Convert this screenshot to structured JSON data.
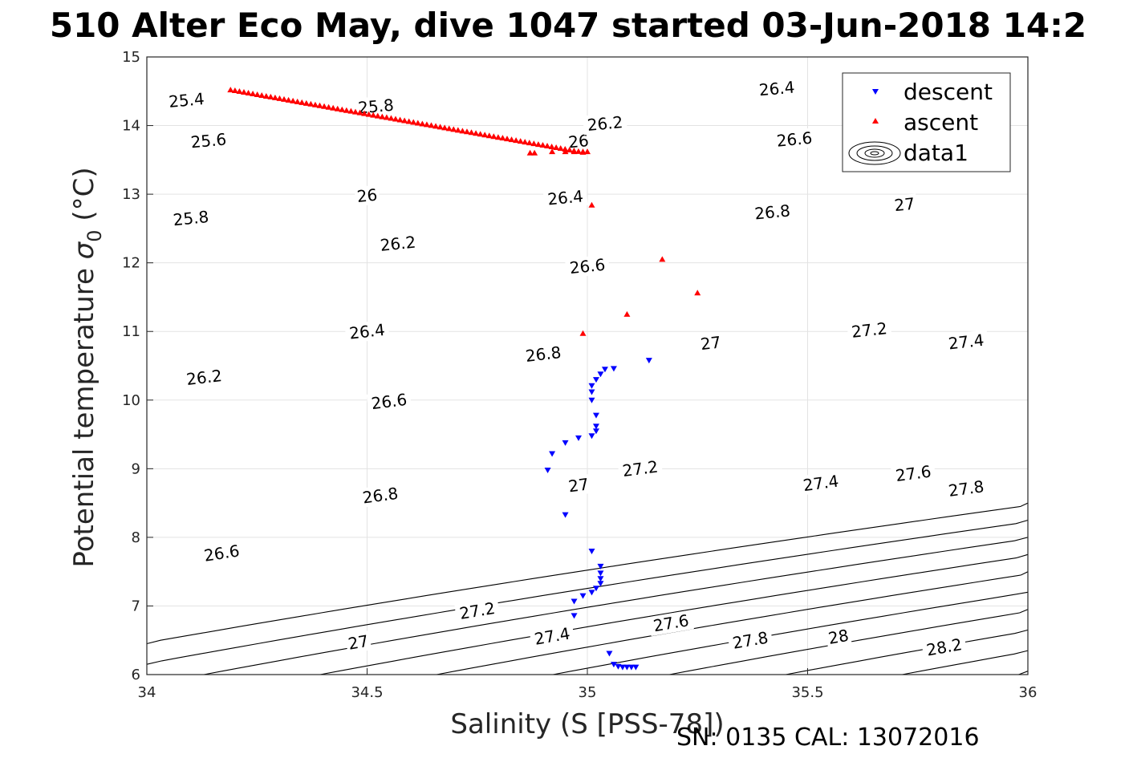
{
  "chart_data": {
    "type": "scatter",
    "title": "510 Alter Eco May, dive 1047 started 03-Jun-2018 14:2",
    "xlabel": "Salinity (S [PSS-78])",
    "ylabel_main": "Potential temperature ",
    "ylabel_symbol": "σ",
    "ylabel_sub": "0",
    "ylabel_unit": " (°C)",
    "xlim": [
      34,
      36
    ],
    "ylim": [
      6,
      15
    ],
    "x_ticks": [
      "34",
      "34.5",
      "35",
      "35.5",
      "36"
    ],
    "y_ticks": [
      "6",
      "7",
      "8",
      "9",
      "10",
      "11",
      "12",
      "13",
      "14",
      "15"
    ],
    "grid": true,
    "legend_position": "top-right",
    "legend": [
      "descent",
      "ascent",
      "data1"
    ],
    "series": [
      {
        "name": "descent",
        "color": "#0000ff",
        "marker": "triangle-down",
        "points": [
          [
            35.14,
            10.58
          ],
          [
            35.06,
            10.46
          ],
          [
            35.04,
            10.45
          ],
          [
            35.03,
            10.38
          ],
          [
            35.02,
            10.3
          ],
          [
            35.01,
            10.21
          ],
          [
            35.01,
            10.12
          ],
          [
            35.01,
            10.0
          ],
          [
            35.02,
            9.78
          ],
          [
            35.02,
            9.62
          ],
          [
            35.02,
            9.55
          ],
          [
            35.01,
            9.48
          ],
          [
            34.98,
            9.45
          ],
          [
            34.95,
            9.38
          ],
          [
            34.92,
            9.22
          ],
          [
            34.91,
            8.98
          ],
          [
            34.95,
            8.33
          ],
          [
            35.01,
            7.8
          ],
          [
            35.03,
            7.58
          ],
          [
            35.03,
            7.48
          ],
          [
            35.03,
            7.4
          ],
          [
            35.03,
            7.33
          ],
          [
            35.02,
            7.26
          ],
          [
            35.01,
            7.2
          ],
          [
            34.99,
            7.15
          ],
          [
            34.97,
            7.07
          ],
          [
            34.97,
            6.86
          ],
          [
            35.05,
            6.31
          ],
          [
            35.06,
            6.15
          ],
          [
            35.07,
            6.12
          ],
          [
            35.08,
            6.11
          ],
          [
            35.09,
            6.11
          ],
          [
            35.1,
            6.11
          ],
          [
            35.11,
            6.11
          ]
        ]
      },
      {
        "name": "ascent",
        "color": "#ff0000",
        "marker": "triangle-up",
        "points": [
          [
            35.25,
            11.56
          ],
          [
            35.17,
            12.05
          ],
          [
            35.09,
            11.25
          ],
          [
            34.99,
            10.97
          ],
          [
            35.01,
            12.84
          ],
          [
            34.88,
            13.6
          ],
          [
            34.87,
            13.6
          ],
          [
            34.92,
            13.62
          ],
          [
            34.95,
            13.62
          ],
          [
            34.97,
            13.62
          ],
          [
            34.99,
            13.62
          ],
          [
            35.0,
            13.62
          ]
        ],
        "line": {
          "from": [
            34.19,
            14.52
          ],
          "to": [
            34.99,
            13.61
          ],
          "count": 80
        }
      },
      {
        "name": "data1",
        "type": "contour",
        "description": "potential density sigma_0 isopycnals",
        "levels": [
          "25.4",
          "25.6",
          "25.8",
          "26",
          "26.2",
          "26.4",
          "26.6",
          "26.8",
          "27",
          "27.2",
          "27.4",
          "27.6",
          "27.8",
          "28",
          "28.2"
        ],
        "labels": [
          {
            "text": "25.4",
            "at": [
              34.09,
              14.37
            ]
          },
          {
            "text": "25.8",
            "at": [
              34.52,
              14.28
            ]
          },
          {
            "text": "26",
            "at": [
              34.98,
              13.77
            ]
          },
          {
            "text": "26.4",
            "at": [
              35.43,
              14.54
            ]
          },
          {
            "text": "25.6",
            "at": [
              34.14,
              13.78
            ]
          },
          {
            "text": "26.2",
            "at": [
              35.04,
              14.03
            ]
          },
          {
            "text": "26.6",
            "at": [
              35.47,
              13.8
            ]
          },
          {
            "text": "26",
            "at": [
              34.5,
              12.98
            ]
          },
          {
            "text": "26.4",
            "at": [
              34.95,
              12.95
            ]
          },
          {
            "text": "26.8",
            "at": [
              35.42,
              12.74
            ]
          },
          {
            "text": "27",
            "at": [
              35.72,
              12.85
            ]
          },
          {
            "text": "25.8",
            "at": [
              34.1,
              12.65
            ]
          },
          {
            "text": "26.2",
            "at": [
              34.57,
              12.28
            ]
          },
          {
            "text": "26.6",
            "at": [
              35.0,
              11.95
            ]
          },
          {
            "text": "26.4",
            "at": [
              34.5,
              11.0
            ]
          },
          {
            "text": "26.8",
            "at": [
              34.9,
              10.67
            ]
          },
          {
            "text": "27",
            "at": [
              35.28,
              10.83
            ]
          },
          {
            "text": "27.2",
            "at": [
              35.64,
              11.02
            ]
          },
          {
            "text": "27.4",
            "at": [
              35.86,
              10.85
            ]
          },
          {
            "text": "26.2",
            "at": [
              34.13,
              10.33
            ]
          },
          {
            "text": "26.6",
            "at": [
              34.55,
              9.98
            ]
          },
          {
            "text": "27",
            "at": [
              34.98,
              8.76
            ]
          },
          {
            "text": "27.2",
            "at": [
              35.12,
              9.0
            ]
          },
          {
            "text": "27.4",
            "at": [
              35.53,
              8.79
            ]
          },
          {
            "text": "27.6",
            "at": [
              35.74,
              8.93
            ]
          },
          {
            "text": "27.8",
            "at": [
              35.86,
              8.71
            ]
          },
          {
            "text": "26.8",
            "at": [
              34.53,
              8.61
            ]
          },
          {
            "text": "26.6",
            "at": [
              34.17,
              7.77
            ]
          },
          {
            "text": "27.2",
            "at": [
              34.75,
              6.93
            ]
          },
          {
            "text": "27.4",
            "at": [
              34.92,
              6.56
            ]
          },
          {
            "text": "27.6",
            "at": [
              35.19,
              6.75
            ]
          },
          {
            "text": "27.8",
            "at": [
              35.37,
              6.5
            ]
          },
          {
            "text": "28",
            "at": [
              35.57,
              6.55
            ]
          },
          {
            "text": "28.2",
            "at": [
              35.81,
              6.4
            ]
          },
          {
            "text": "27",
            "at": [
              34.48,
              6.47
            ]
          }
        ]
      }
    ]
  },
  "footer": {
    "text": "SN: 0135  CAL: 13072016"
  }
}
